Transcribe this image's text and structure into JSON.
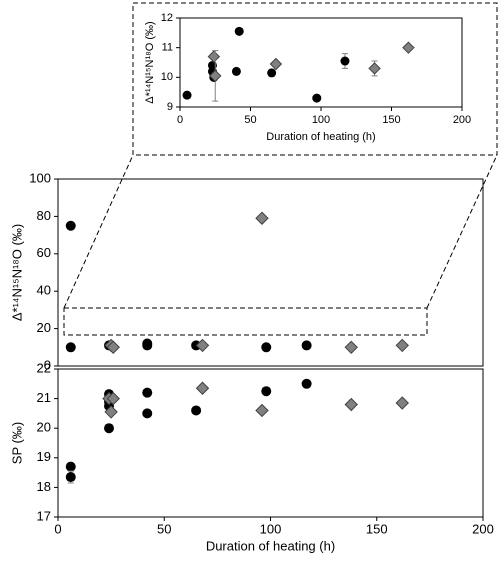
{
  "chart_data": [
    {
      "type": "scatter",
      "xlabel": "Duration of heating (h)",
      "ylabel": "Δ*¹⁴N¹⁵N¹⁸O (‰)",
      "xlim": [
        0,
        200
      ],
      "ylim": [
        9,
        12
      ],
      "xticks": [
        0,
        50,
        100,
        150,
        200
      ],
      "yticks": [
        9,
        10,
        11,
        12
      ],
      "series": [
        {
          "marker": "circle",
          "color": "#000000",
          "x": [
            5,
            23,
            23,
            24,
            24,
            40,
            42,
            65,
            97,
            117
          ],
          "values": [
            9.4,
            10.4,
            10.2,
            10.0,
            10.0,
            10.2,
            11.55,
            10.15,
            9.3,
            10.55
          ],
          "errors": [
            null,
            null,
            null,
            null,
            null,
            null,
            null,
            0.1,
            null,
            0.25
          ]
        },
        {
          "marker": "diamond",
          "color": "#808080",
          "x": [
            24,
            25,
            68,
            138,
            162
          ],
          "values": [
            10.7,
            10.05,
            10.45,
            10.3,
            11.0
          ],
          "errors": [
            null,
            0.85,
            null,
            0.25,
            null
          ]
        }
      ]
    },
    {
      "type": "scatter",
      "ylabel": "Δ*¹⁴N¹⁵N¹⁸O (‰)",
      "xlim": [
        0,
        200
      ],
      "ylim": [
        0,
        100
      ],
      "yticks": [
        0,
        20,
        40,
        60,
        80,
        100
      ],
      "series": [
        {
          "marker": "circle",
          "color": "#000000",
          "x": [
            6,
            6,
            24,
            25,
            42,
            42,
            65,
            98,
            117
          ],
          "values": [
            75,
            10,
            11,
            11,
            11,
            12,
            11,
            10,
            11
          ]
        },
        {
          "marker": "diamond",
          "color": "#808080",
          "x": [
            96,
            25,
            26,
            68,
            138,
            162
          ],
          "values": [
            79,
            11,
            10,
            11,
            10,
            11
          ]
        }
      ]
    },
    {
      "type": "scatter",
      "xlabel": "Duration of heating (h)",
      "ylabel": "SP (‰)",
      "xlim": [
        0,
        200
      ],
      "ylim": [
        17,
        22
      ],
      "xticks": [
        0,
        50,
        100,
        150,
        200
      ],
      "yticks": [
        17,
        18,
        19,
        20,
        21,
        22
      ],
      "series": [
        {
          "marker": "circle",
          "color": "#000000",
          "x": [
            6,
            6,
            24,
            24,
            24,
            24,
            42,
            42,
            65,
            98,
            117
          ],
          "values": [
            18.7,
            18.35,
            21.15,
            20.9,
            20.75,
            20.0,
            21.2,
            20.5,
            20.6,
            21.25,
            21.5
          ],
          "errors": [
            null,
            0.2,
            null,
            null,
            null,
            null,
            null,
            null,
            null,
            0.1,
            null
          ]
        },
        {
          "marker": "diamond",
          "color": "#808080",
          "x": [
            24,
            25,
            26,
            68,
            96,
            138,
            162
          ],
          "values": [
            21.0,
            20.55,
            21.0,
            21.35,
            20.6,
            20.8,
            20.85
          ],
          "errors": [
            null,
            null,
            null,
            null,
            null,
            0.1,
            null
          ]
        }
      ]
    }
  ]
}
